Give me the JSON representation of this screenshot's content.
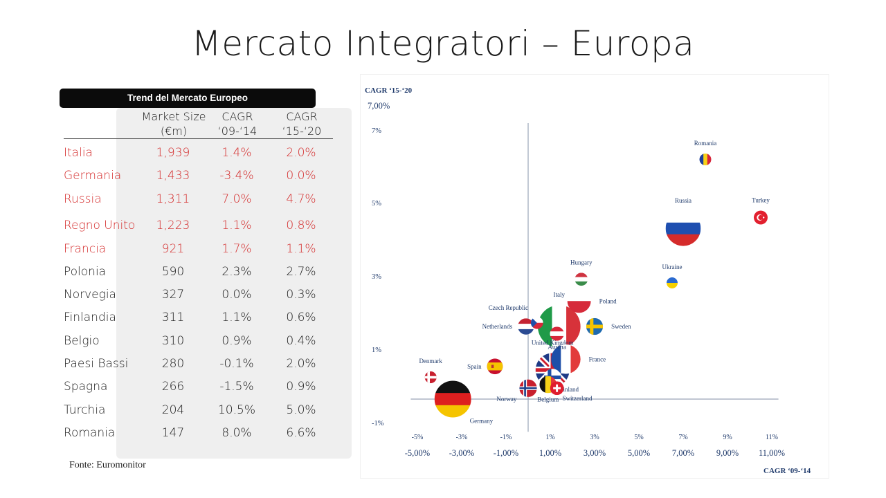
{
  "slide": {
    "title": "Mercato Integratori – Europa",
    "source": "Fonte: Euromonitor"
  },
  "table": {
    "header": "Trend del Mercato Europeo",
    "columns": [
      {
        "line1": "Market Size",
        "line2": "(€m)"
      },
      {
        "line1": "CAGR",
        "line2": "‘09-‘14"
      },
      {
        "line1": "CAGR",
        "line2": "‘15-‘20"
      }
    ],
    "rows": [
      {
        "name": "Italia",
        "size": "1,939",
        "cagr_09_14": "1.4%",
        "cagr_15_20": "2.0%",
        "highlight": true
      },
      {
        "name": "Germania",
        "size": "1,433",
        "cagr_09_14": "-3.4%",
        "cagr_15_20": "0.0%",
        "highlight": true
      },
      {
        "name": "Russia",
        "size": "1,311",
        "cagr_09_14": "7.0%",
        "cagr_15_20": "4.7%",
        "highlight": true
      },
      {
        "name": "Regno Unito",
        "size": "1,223",
        "cagr_09_14": "1.1%",
        "cagr_15_20": "0.8%",
        "highlight": true
      },
      {
        "name": "Francia",
        "size": "921",
        "cagr_09_14": "1.7%",
        "cagr_15_20": "1.1%",
        "highlight": true
      },
      {
        "name": "Polonia",
        "size": "590",
        "cagr_09_14": "2.3%",
        "cagr_15_20": "2.7%",
        "highlight": false
      },
      {
        "name": "Norvegia",
        "size": "327",
        "cagr_09_14": "0.0%",
        "cagr_15_20": "0.3%",
        "highlight": false
      },
      {
        "name": "Finlandia",
        "size": "311",
        "cagr_09_14": "1.1%",
        "cagr_15_20": "0.6%",
        "highlight": false
      },
      {
        "name": "Belgio",
        "size": "310",
        "cagr_09_14": "0.9%",
        "cagr_15_20": "0.4%",
        "highlight": false
      },
      {
        "name": "Paesi Bassi",
        "size": "280",
        "cagr_09_14": "-0.1%",
        "cagr_15_20": "2.0%",
        "highlight": false
      },
      {
        "name": "Spagna",
        "size": "266",
        "cagr_09_14": "-1.5%",
        "cagr_15_20": "0.9%",
        "highlight": false
      },
      {
        "name": "Turchia",
        "size": "204",
        "cagr_09_14": "10.5%",
        "cagr_15_20": "5.0%",
        "highlight": false
      },
      {
        "name": "Romania",
        "size": "147",
        "cagr_09_14": "8.0%",
        "cagr_15_20": "6.6%",
        "highlight": false
      }
    ]
  },
  "chart_data": {
    "type": "scatter",
    "xlabel": "CAGR ‘09-‘14",
    "ylabel": "CAGR ‘15-‘20",
    "xlim": [
      -5.8,
      11.8
    ],
    "ylim": [
      -1.2,
      7.8
    ],
    "x_ticks_inner": [
      "-5%",
      "-3%",
      "-1%",
      "1%",
      "3%",
      "5%",
      "7%",
      "9%",
      "11%"
    ],
    "x_ticks_outer": [
      "-5,00%",
      "-3,00%",
      "-1,00%",
      "1,00%",
      "3,00%",
      "5,00%",
      "7,00%",
      "9,00%",
      "11,00%"
    ],
    "y_ticks": [
      {
        "label": "7,00%",
        "outer": true
      },
      {
        "label": "7%",
        "outer": false
      },
      {
        "label": "5%",
        "outer": false
      },
      {
        "label": "3%",
        "outer": false
      },
      {
        "label": "1%",
        "outer": false
      },
      {
        "label": "-1%",
        "outer": false
      }
    ],
    "highlight_color": "#d42a2a",
    "points": [
      {
        "name": "Italy",
        "flag": "italy-flag",
        "x": 1.4,
        "y": 2.0,
        "size": 1939,
        "label_pos": "above"
      },
      {
        "name": "Germany",
        "flag": "germany-flag",
        "x": -3.4,
        "y": 0.0,
        "size": 1433,
        "label_pos": "below-right"
      },
      {
        "name": "Russia",
        "flag": "russia-flag",
        "x": 7.0,
        "y": 4.7,
        "size": 1311,
        "label_pos": "above"
      },
      {
        "name": "United Kingdom",
        "flag": "uk-flag",
        "x": 1.1,
        "y": 0.8,
        "size": 1223,
        "label_pos": "above"
      },
      {
        "name": "France",
        "flag": "france-flag",
        "x": 1.7,
        "y": 1.1,
        "size": 921,
        "label_pos": "right"
      },
      {
        "name": "Poland",
        "flag": "poland-flag",
        "x": 2.3,
        "y": 2.7,
        "size": 590,
        "label_pos": "right"
      },
      {
        "name": "Norway",
        "flag": "norway-flag",
        "x": 0.0,
        "y": 0.3,
        "size": 327,
        "label_pos": "below-left"
      },
      {
        "name": "Finland",
        "flag": "finland-flag",
        "x": 1.1,
        "y": 0.6,
        "size": 311,
        "label_pos": "below-right"
      },
      {
        "name": "Belgium",
        "flag": "belgium-flag",
        "x": 0.9,
        "y": 0.4,
        "size": 310,
        "label_pos": "below"
      },
      {
        "name": "Netherlands",
        "flag": "netherlands-flag",
        "x": -0.1,
        "y": 2.0,
        "size": 280,
        "label_pos": "left"
      },
      {
        "name": "Spain",
        "flag": "spain-flag",
        "x": -1.5,
        "y": 0.9,
        "size": 266,
        "label_pos": "left"
      },
      {
        "name": "Turkey",
        "flag": "turkey-flag",
        "x": 10.5,
        "y": 5.0,
        "size": 204,
        "label_pos": "above"
      },
      {
        "name": "Romania",
        "flag": "romania-flag",
        "x": 8.0,
        "y": 6.6,
        "size": 147,
        "label_pos": "above"
      },
      {
        "name": "Hungary",
        "flag": "hungary-flag",
        "x": 2.4,
        "y": 3.3,
        "size": 180,
        "label_pos": "above"
      },
      {
        "name": "Ukraine",
        "flag": "ukraine-flag",
        "x": 6.5,
        "y": 3.2,
        "size": 130,
        "label_pos": "above"
      },
      {
        "name": "Sweden",
        "flag": "sweden-flag",
        "x": 3.0,
        "y": 2.0,
        "size": 300,
        "label_pos": "right"
      },
      {
        "name": "Czech Republic",
        "flag": "czech-flag",
        "x": 0.4,
        "y": 2.1,
        "size": 160,
        "label_pos": "above-left"
      },
      {
        "name": "Austria",
        "flag": "austria-flag",
        "x": 1.3,
        "y": 1.8,
        "size": 210,
        "label_pos": "below"
      },
      {
        "name": "Switzerland",
        "flag": "switzerland-flag",
        "x": 1.3,
        "y": 0.3,
        "size": 200,
        "label_pos": "below-right"
      },
      {
        "name": "Denmark",
        "flag": "denmark-flag",
        "x": -4.4,
        "y": 0.6,
        "size": 150,
        "label_pos": "above"
      }
    ]
  }
}
